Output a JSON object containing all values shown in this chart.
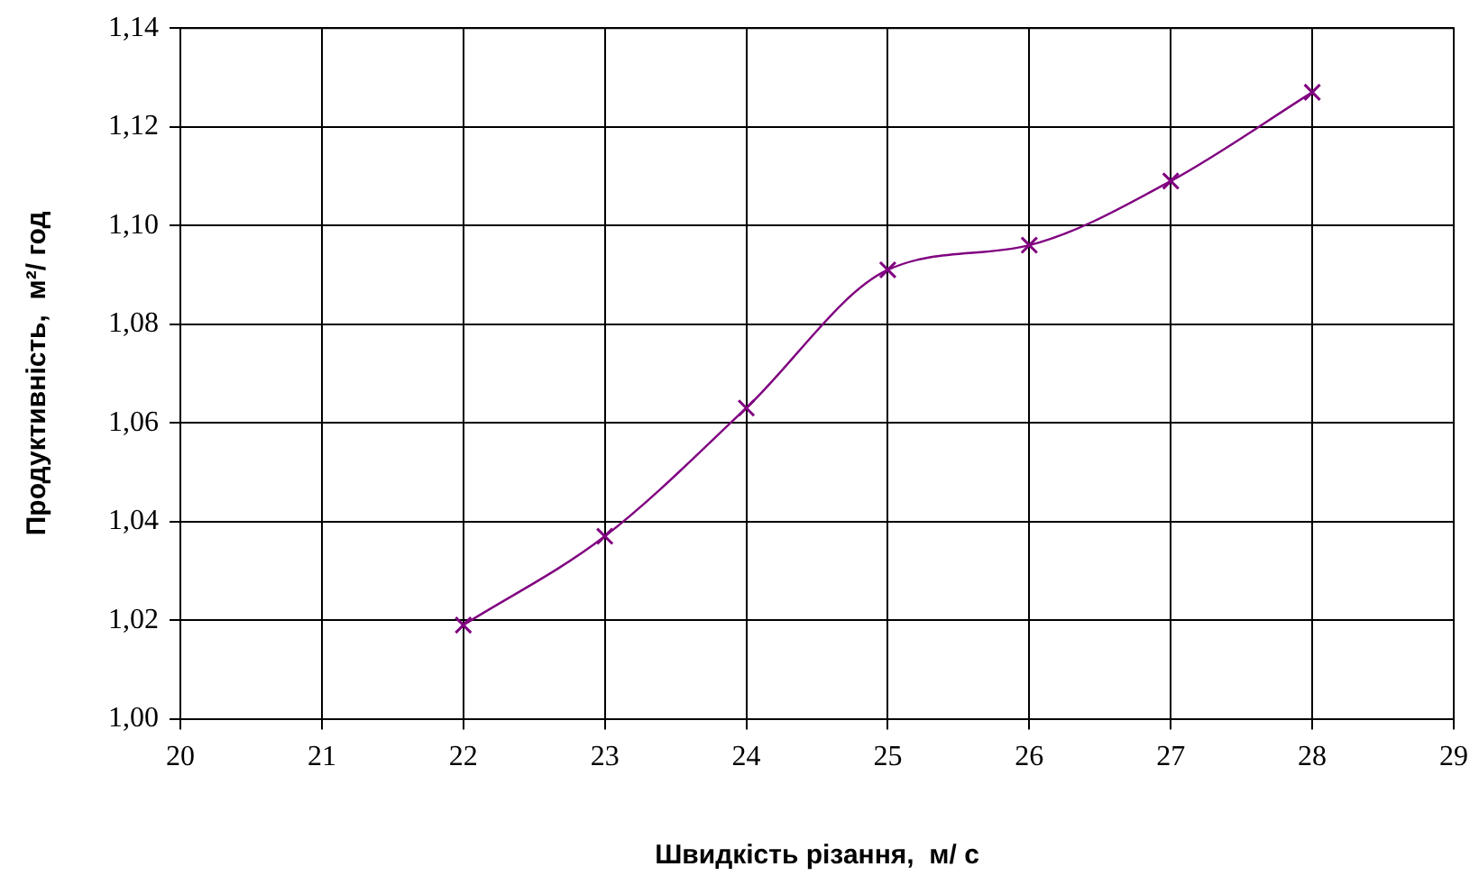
{
  "chart_data": {
    "type": "line",
    "xlabel": "Швидкість різання,  м/ с",
    "ylabel": "Продуктивність,  м²/ год",
    "x": [
      22,
      23,
      24,
      25,
      26,
      27,
      28
    ],
    "series": [
      {
        "color": "#800080",
        "values": [
          1.019,
          1.037,
          1.063,
          1.091,
          1.096,
          1.109,
          1.127
        ]
      }
    ],
    "xlim": [
      20,
      29
    ],
    "xticks": [
      20,
      21,
      22,
      23,
      24,
      25,
      26,
      27,
      28,
      29
    ],
    "ylim": [
      1.0,
      1.14
    ],
    "yticks": [
      {
        "value": 1.0,
        "label": "1,00"
      },
      {
        "value": 1.02,
        "label": "1,02"
      },
      {
        "value": 1.04,
        "label": "1,04"
      },
      {
        "value": 1.06,
        "label": "1,06"
      },
      {
        "value": 1.08,
        "label": "1,08"
      },
      {
        "value": 1.1,
        "label": "1,10"
      },
      {
        "value": 1.12,
        "label": "1,12"
      },
      {
        "value": 1.14,
        "label": "1,14"
      }
    ],
    "grid": true,
    "legend": false,
    "marker": "cross",
    "line_style": "solid"
  }
}
